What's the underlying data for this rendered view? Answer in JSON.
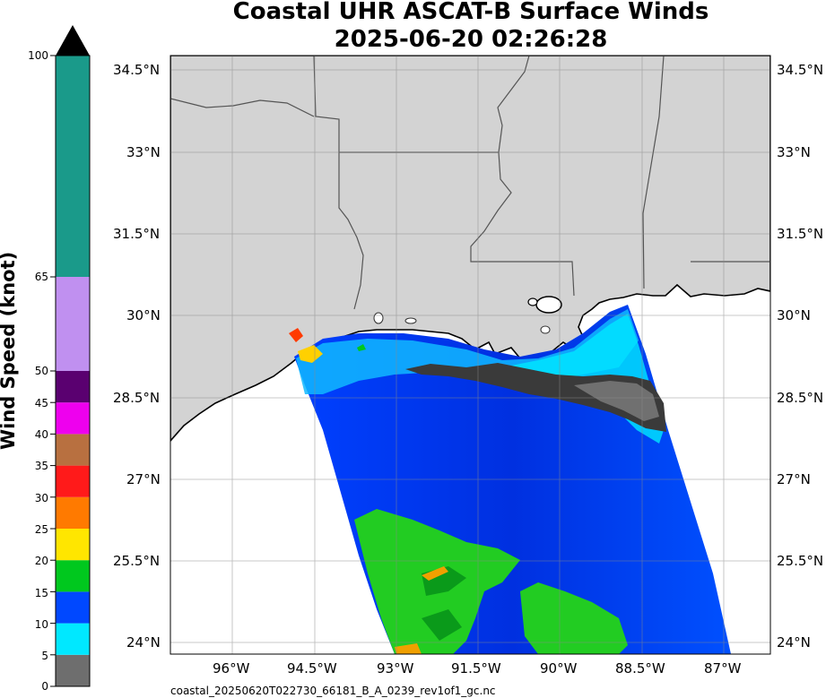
{
  "title": {
    "line1": "Coastal UHR ASCAT-B Surface Winds",
    "line2": "2025-06-20 02:26:28"
  },
  "footer_filename": "coastal_20250620T022730_66181_B_A_0239_rev1of1_gc.nc",
  "colorbar": {
    "label": "Wind Speed (knot)",
    "ticks": [
      "0",
      "5",
      "10",
      "15",
      "20",
      "25",
      "30",
      "35",
      "40",
      "45",
      "50",
      "65",
      "100"
    ],
    "extend": "max-arrow",
    "bands": [
      {
        "from": 0,
        "to": 5,
        "color": "#6e6e6e"
      },
      {
        "from": 5,
        "to": 10,
        "color": "#00e8ff"
      },
      {
        "from": 10,
        "to": 15,
        "color": "#0048ff"
      },
      {
        "from": 15,
        "to": 20,
        "color": "#00c81e"
      },
      {
        "from": 20,
        "to": 25,
        "color": "#ffe600"
      },
      {
        "from": 25,
        "to": 30,
        "color": "#ff7a00"
      },
      {
        "from": 30,
        "to": 35,
        "color": "#ff1a1a"
      },
      {
        "from": 35,
        "to": 40,
        "color": "#b87040"
      },
      {
        "from": 40,
        "to": 45,
        "color": "#ee00ee"
      },
      {
        "from": 45,
        "to": 50,
        "color": "#5a0070"
      },
      {
        "from": 50,
        "to": 65,
        "color": "#c090f0"
      },
      {
        "from": 65,
        "to": 100,
        "color": "#1a9a8a"
      }
    ]
  },
  "map": {
    "lat_labels": [
      "34.5°N",
      "33°N",
      "31.5°N",
      "30°N",
      "28.5°N",
      "27°N",
      "25.5°N",
      "24°N"
    ],
    "lon_labels": [
      "96°W",
      "94.5°W",
      "93°W",
      "91.5°W",
      "90°W",
      "88.5°W",
      "87°W"
    ],
    "land_color": "#d3d3d3",
    "ocean_color": "#ffffff",
    "grid": true
  }
}
